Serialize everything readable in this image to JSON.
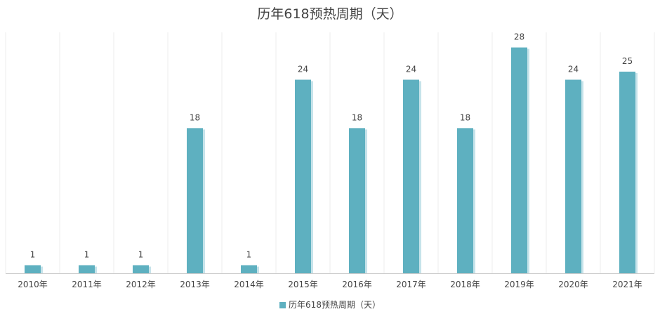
{
  "chart_data": {
    "type": "bar",
    "title": "历年618预热周期（天）",
    "categories": [
      "2010年",
      "2011年",
      "2012年",
      "2013年",
      "2014年",
      "2015年",
      "2016年",
      "2017年",
      "2018年",
      "2019年",
      "2020年",
      "2021年"
    ],
    "series": [
      {
        "name": "历年618预热周期（天）",
        "values": [
          1,
          1,
          1,
          18,
          1,
          24,
          18,
          24,
          18,
          28,
          24,
          25
        ]
      }
    ],
    "ylim": [
      0,
      30
    ],
    "grid": "vertical",
    "legend": "bottom-center",
    "data_labels": true,
    "colors": {
      "bar": "#5eb0c0",
      "bar_shadow": "#c6e3ea",
      "grid": "#ececec",
      "axis": "#cccccc",
      "text": "#444444"
    }
  }
}
